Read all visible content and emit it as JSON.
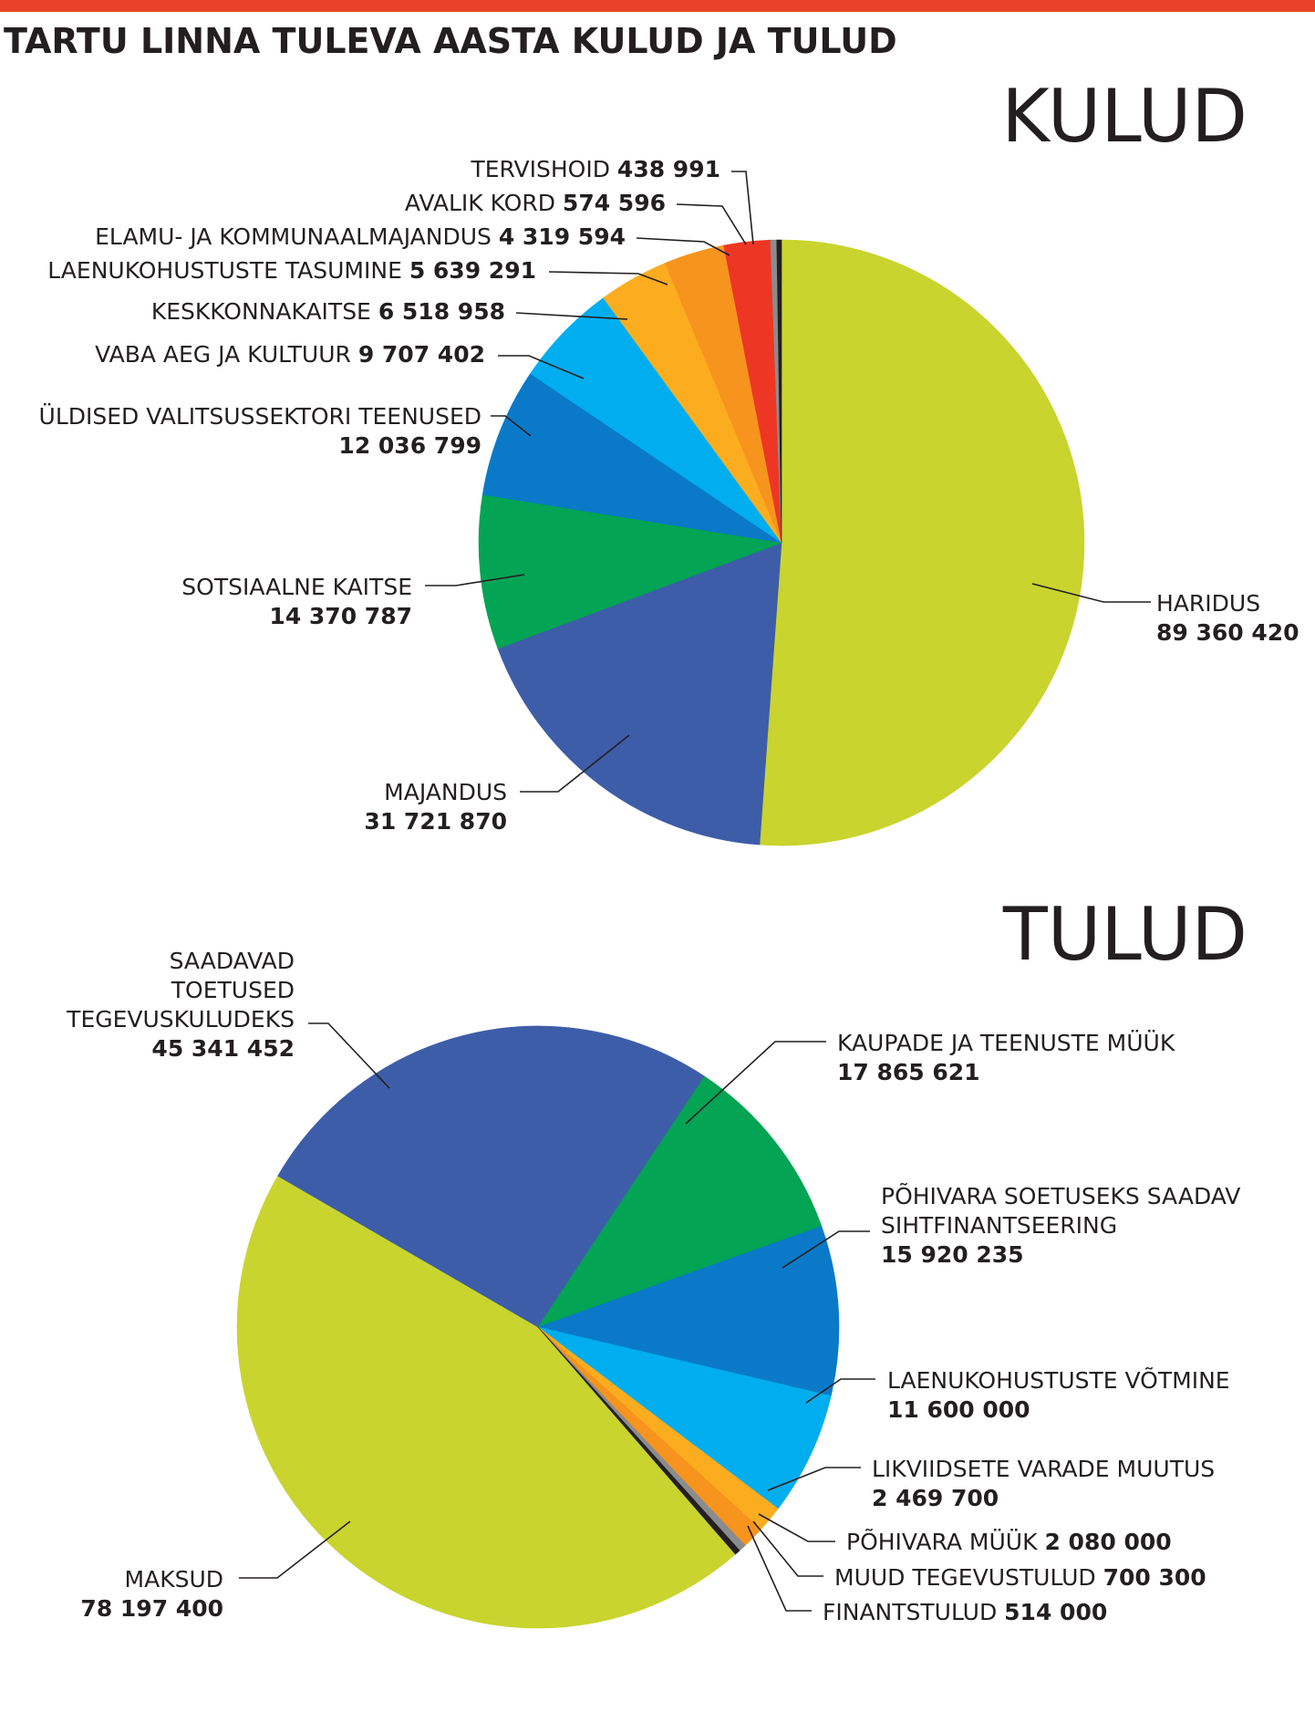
{
  "title": "TARTU LINNA TULEVA AASTA KULUD JA TULUD",
  "colors": {
    "top_bar": "#e8432a"
  },
  "chart_data": [
    {
      "type": "pie",
      "title": "KULUD",
      "slices": [
        {
          "label": "HARIDUS",
          "value": 89360420,
          "value_text": "89 360 420",
          "color": "#c9d42e"
        },
        {
          "label": "MAJANDUS",
          "value": 31721870,
          "value_text": "31 721 870",
          "color": "#3d5da8"
        },
        {
          "label": "SOTSIAALNE KAITSE",
          "value": 14370787,
          "value_text": "14 370 787",
          "color": "#03a453"
        },
        {
          "label": "ÜLDISED VALITSUSSEKTORI TEENUSED",
          "value": 12036799,
          "value_text": "12 036 799",
          "color": "#0a7ac8"
        },
        {
          "label": "VABA AEG JA KULTUUR",
          "value": 9707402,
          "value_text": "9 707 402",
          "color": "#00aeef"
        },
        {
          "label": "KESKKONNAKAITSE",
          "value": 6518958,
          "value_text": "6 518 958",
          "color": "#fbad1f"
        },
        {
          "label": "LAENUKOHUSTUSTE TASUMINE",
          "value": 5639291,
          "value_text": "5 639 291",
          "color": "#f7941d"
        },
        {
          "label": "ELAMU- JA KOMMUNAALMAJANDUS",
          "value": 4319594,
          "value_text": "4 319 594",
          "color": "#ee3624"
        },
        {
          "label": "AVALIK KORD",
          "value": 574596,
          "value_text": "574 596",
          "color": "#8a8c8e"
        },
        {
          "label": "TERVISHOID",
          "value": 438991,
          "value_text": "438 991",
          "color": "#231f20"
        }
      ]
    },
    {
      "type": "pie",
      "title": "TULUD",
      "slices": [
        {
          "label": "MAKSUD",
          "value": 78197400,
          "value_text": "78 197 400",
          "color": "#c9d42e"
        },
        {
          "label": "SAADAVAD TOETUSED TEGEVUSKULUDEKS",
          "label_lines": [
            "SAADAVAD",
            "TOETUSED",
            "TEGEVUSKULUDEKS"
          ],
          "value": 45341452,
          "value_text": "45 341 452",
          "color": "#3d5da8"
        },
        {
          "label": "KAUPADE JA TEENUSTE MÜÜK",
          "value": 17865621,
          "value_text": "17 865 621",
          "color": "#03a453"
        },
        {
          "label": "PÕHIVARA SOETUSEKS SAADAV SIHTFINANTSEERING",
          "label_lines": [
            "PÕHIVARA SOETUSEKS SAADAV",
            "SIHTFINANTSEERING"
          ],
          "value": 15920235,
          "value_text": "15 920 235",
          "color": "#0a7ac8"
        },
        {
          "label": "LAENUKOHUSTUSTE VÕTMINE",
          "value": 11600000,
          "value_text": "11 600 000",
          "color": "#00aeef"
        },
        {
          "label": "LIKVIIDSETE VARADE MUUTUS",
          "value": 2469700,
          "value_text": "2 469 700",
          "color": "#fbad1f"
        },
        {
          "label": "PÕHIVARA MÜÜK",
          "value": 2080000,
          "value_text": "2 080 000",
          "color": "#f7941d"
        },
        {
          "label": "MUUD TEGEVUSTULUD",
          "value": 700300,
          "value_text": "700 300",
          "color": "#8a8c8e"
        },
        {
          "label": "FINANTSTULUD",
          "value": 514000,
          "value_text": "514 000",
          "color": "#231f20"
        }
      ]
    }
  ]
}
